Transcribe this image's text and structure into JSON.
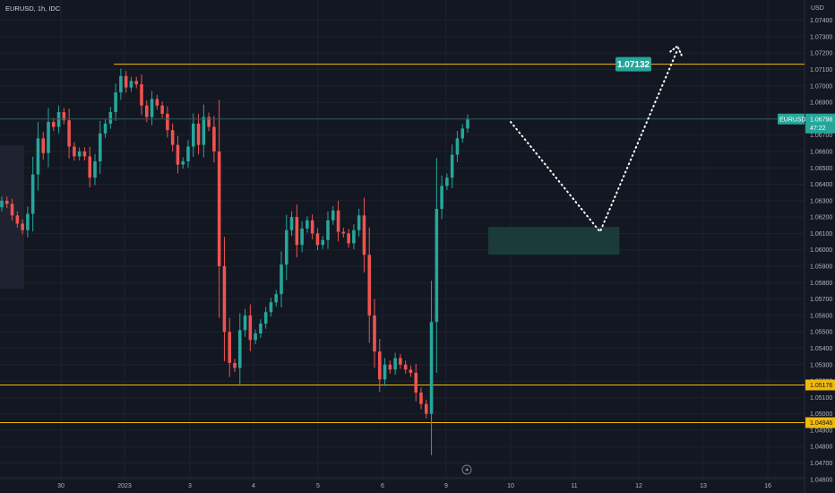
{
  "header": {
    "title": "EURUSD, 1h, IDC"
  },
  "currency": "USD",
  "chart_data": {
    "type": "candlestick",
    "symbol": "EURUSD",
    "interval": "1h",
    "source": "IDC",
    "price_axis": {
      "ylim": [
        1.0461,
        1.0748
      ],
      "ticks": [
        "1.07400",
        "1.07300",
        "1.07200",
        "1.07100",
        "1.07000",
        "1.06900",
        "1.06800",
        "1.06700",
        "1.06600",
        "1.06500",
        "1.06400",
        "1.06300",
        "1.06200",
        "1.06100",
        "1.06000",
        "1.05900",
        "1.05800",
        "1.05700",
        "1.05600",
        "1.05500",
        "1.05400",
        "1.05300",
        "1.05200",
        "1.05100",
        "1.05000",
        "1.04900",
        "1.04800",
        "1.04700",
        "1.04600"
      ]
    },
    "time_axis": {
      "ticks": [
        {
          "label": "30",
          "x": 0
        },
        {
          "label": "2023",
          "x": 1
        },
        {
          "label": "3",
          "x": 2
        },
        {
          "label": "4",
          "x": 3
        },
        {
          "label": "5",
          "x": 4
        },
        {
          "label": "6",
          "x": 5
        },
        {
          "label": "9",
          "x": 6
        },
        {
          "label": "10",
          "x": 7
        },
        {
          "label": "11",
          "x": 8
        },
        {
          "label": "12",
          "x": 9
        },
        {
          "label": "13",
          "x": 10
        },
        {
          "label": "16",
          "x": 11
        }
      ]
    },
    "current_price": {
      "symbol": "EURUSD",
      "value": "1.06798",
      "countdown": "47:22",
      "color": "#26a69a"
    },
    "horizontal_lines": [
      {
        "price": 1.07132,
        "label": "1.07132",
        "color": "#f0b90b"
      },
      {
        "price": 1.05176,
        "label": "1.05176",
        "color": "#f0b90b"
      },
      {
        "price": 1.04946,
        "label": "1.04946",
        "color": "#f0b90b"
      }
    ],
    "target_label": "1.07132",
    "zone": {
      "price_high": 1.0614,
      "price_low": 1.0597,
      "color": "#1b3a3a"
    },
    "projection_path": [
      {
        "x": 7.0,
        "price": 1.0678
      },
      {
        "x": 8.4,
        "price": 1.0611
      },
      {
        "x": 9.6,
        "price": 1.0722
      }
    ],
    "up_color": "#26a69a",
    "down_color": "#ef5350",
    "closes": [
      1.063,
      1.0628,
      1.0621,
      1.0616,
      1.0612,
      1.0622,
      1.0646,
      1.0668,
      1.0659,
      1.0678,
      1.0675,
      1.0684,
      1.0679,
      1.0663,
      1.0657,
      1.066,
      1.0657,
      1.0644,
      1.0654,
      1.0671,
      1.0677,
      1.0684,
      1.0696,
      1.0706,
      1.0699,
      1.0703,
      1.0701,
      1.0688,
      1.0681,
      1.0692,
      1.0688,
      1.0683,
      1.0673,
      1.0664,
      1.0652,
      1.0654,
      1.0663,
      1.0677,
      1.0664,
      1.0681,
      1.0675,
      1.066,
      1.059,
      1.055,
      1.0531,
      1.0528,
      1.0551,
      1.056,
      1.0545,
      1.0549,
      1.0555,
      1.0562,
      1.0568,
      1.0573,
      1.0591,
      1.0612,
      1.062,
      1.0603,
      1.0613,
      1.0618,
      1.061,
      1.0603,
      1.0606,
      1.0618,
      1.0624,
      1.0611,
      1.061,
      1.0604,
      1.0612,
      1.0621,
      1.0597,
      1.056,
      1.0538,
      1.0521,
      1.053,
      1.0527,
      1.0534,
      1.053,
      1.0527,
      1.0525,
      1.0513,
      1.0506,
      1.05,
      1.0556,
      1.0625,
      1.0639,
      1.0644,
      1.0658,
      1.0668,
      1.0674,
      1.068
    ]
  }
}
